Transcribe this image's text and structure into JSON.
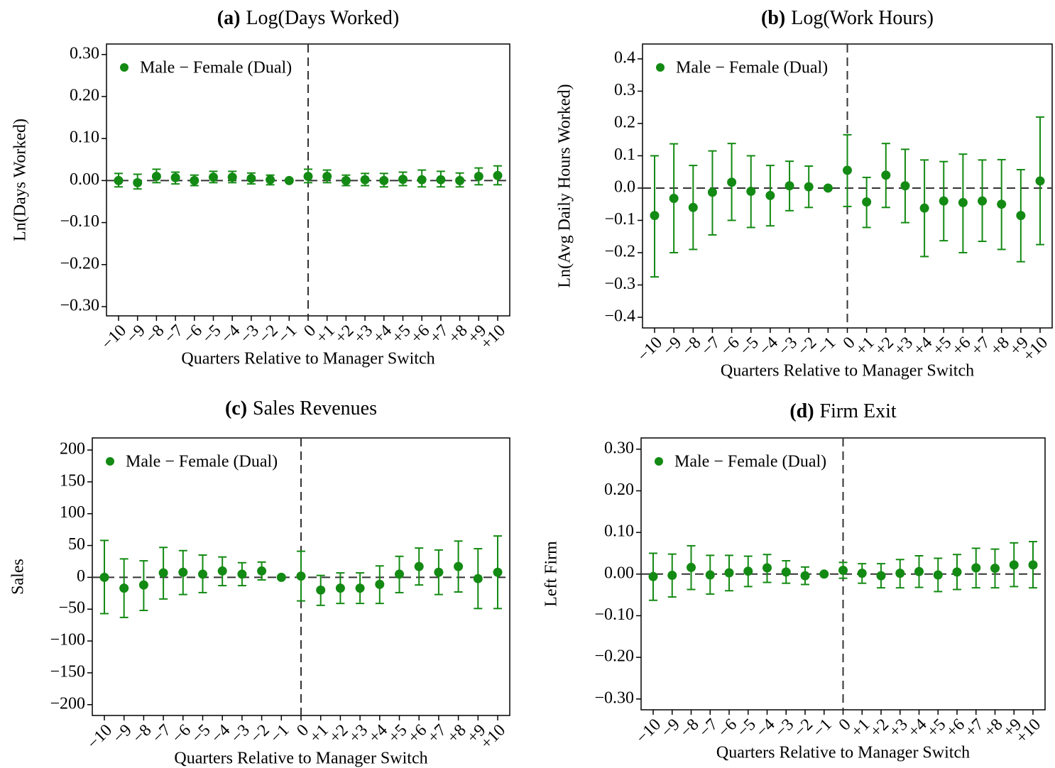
{
  "chart_data": [
    {
      "type": "scatter",
      "label": "(a)",
      "title": "Log(Days Worked)",
      "x_label": "Quarters Relative to Manager Switch",
      "y_label": "Ln(Days Worked)",
      "legend": "upper left",
      "hline": 0,
      "vline": "0",
      "categories": [
        "−10",
        "−9",
        "−8",
        "−7",
        "−6",
        "−5",
        "−4",
        "−3",
        "−2",
        "−1",
        "0",
        "+1",
        "+2",
        "+3",
        "+4",
        "+5",
        "+6",
        "+7",
        "+8",
        "+9",
        "+10"
      ],
      "ylim": [
        -0.322,
        0.325
      ],
      "yticks": [
        {
          "value": 0.3,
          "label": "0.30"
        },
        {
          "value": 0.2,
          "label": "0.20"
        },
        {
          "value": 0.1,
          "label": "0.10"
        },
        {
          "value": 0,
          "label": "0.00"
        },
        {
          "value": -0.1,
          "label": "−0.10"
        },
        {
          "value": -0.2,
          "label": "−0.20"
        },
        {
          "value": -0.3,
          "label": "−0.30"
        }
      ],
      "series": [
        {
          "name": "Male − Female (Dual)",
          "color": "#138a13",
          "values": [
            0.0,
            -0.005,
            0.01,
            0.007,
            0.0,
            0.008,
            0.008,
            0.005,
            0.002,
            0,
            0.01,
            0.01,
            0.0,
            0.002,
            0.0,
            0.003,
            0.002,
            0.002,
            0.0,
            0.01,
            0.012
          ],
          "lower": [
            -0.015,
            -0.02,
            -0.005,
            -0.008,
            -0.012,
            -0.005,
            -0.005,
            -0.008,
            -0.01,
            null,
            -0.005,
            -0.005,
            -0.012,
            -0.012,
            -0.015,
            -0.012,
            -0.015,
            -0.015,
            -0.015,
            -0.01,
            -0.01
          ],
          "upper": [
            0.017,
            0.015,
            0.027,
            0.02,
            0.013,
            0.022,
            0.022,
            0.018,
            0.013,
            null,
            0.027,
            0.025,
            0.013,
            0.017,
            0.017,
            0.02,
            0.025,
            0.022,
            0.018,
            0.03,
            0.035
          ]
        }
      ]
    },
    {
      "type": "scatter",
      "label": "(b)",
      "title": "Log(Work Hours)",
      "x_label": "Quarters Relative to Manager Switch",
      "y_label": "Ln(Avg Daily Hours Worked)",
      "legend": "upper left",
      "hline": 0,
      "vline": "0",
      "categories": [
        "−10",
        "−9",
        "−8",
        "−7",
        "−6",
        "−5",
        "−4",
        "−3",
        "−2",
        "−1",
        "0",
        "+1",
        "+2",
        "+3",
        "+4",
        "+5",
        "+6",
        "+7",
        "+8",
        "+9",
        "+10"
      ],
      "ylim": [
        -0.433,
        0.446
      ],
      "yticks": [
        {
          "value": 0.4,
          "label": "0.4"
        },
        {
          "value": 0.3,
          "label": "0.3"
        },
        {
          "value": 0.2,
          "label": "0.2"
        },
        {
          "value": 0.1,
          "label": "0.1"
        },
        {
          "value": 0,
          "label": "0.0"
        },
        {
          "value": -0.1,
          "label": "−0.1"
        },
        {
          "value": -0.2,
          "label": "−0.2"
        },
        {
          "value": -0.3,
          "label": "−0.3"
        },
        {
          "value": -0.4,
          "label": "−0.4"
        }
      ],
      "series": [
        {
          "name": "Male − Female (Dual)",
          "color": "#138a13",
          "values": [
            -0.085,
            -0.032,
            -0.06,
            -0.013,
            0.018,
            -0.01,
            -0.023,
            0.007,
            0.004,
            0,
            0.055,
            -0.043,
            0.04,
            0.007,
            -0.062,
            -0.04,
            -0.045,
            -0.04,
            -0.05,
            -0.085,
            0.022
          ],
          "lower": [
            -0.275,
            -0.2,
            -0.19,
            -0.145,
            -0.1,
            -0.122,
            -0.117,
            -0.07,
            -0.06,
            null,
            -0.057,
            -0.122,
            -0.06,
            -0.107,
            -0.212,
            -0.163,
            -0.2,
            -0.165,
            -0.19,
            -0.228,
            -0.175
          ],
          "upper": [
            0.1,
            0.137,
            0.07,
            0.115,
            0.138,
            0.1,
            0.07,
            0.083,
            0.068,
            null,
            0.165,
            0.033,
            0.138,
            0.12,
            0.087,
            0.082,
            0.105,
            0.087,
            0.088,
            0.057,
            0.22
          ]
        }
      ]
    },
    {
      "type": "scatter",
      "label": "(c)",
      "title": "Sales Revenues",
      "x_label": "Quarters Relative to Manager Switch",
      "y_label": "Sales",
      "legend": "upper left",
      "hline": 0,
      "vline": "0",
      "categories": [
        "−10",
        "−9",
        "−8",
        "−7",
        "−6",
        "−5",
        "−4",
        "−3",
        "−2",
        "−1",
        "0",
        "+1",
        "+2",
        "+3",
        "+4",
        "+5",
        "+6",
        "+7",
        "+8",
        "+9",
        "+10"
      ],
      "ylim": [
        -217,
        219
      ],
      "yticks": [
        200,
        150,
        100,
        50,
        0,
        {
          "value": -50,
          "label": "−50"
        },
        {
          "value": -100,
          "label": "−100"
        },
        {
          "value": -150,
          "label": "−150"
        },
        {
          "value": -200,
          "label": "−200"
        }
      ],
      "series": [
        {
          "name": "Male − Female (Dual)",
          "color": "#138a13",
          "values": [
            0,
            -17,
            -12,
            7,
            8,
            5,
            10,
            5,
            10,
            0,
            2,
            -20,
            -17,
            -17,
            -11,
            5,
            17,
            8,
            17,
            -2,
            8
          ],
          "lower": [
            -57,
            -63,
            -52,
            -34,
            -27,
            -24,
            -13,
            -13,
            -4,
            null,
            -37,
            -44,
            -41,
            -41,
            -41,
            -24,
            -12,
            -27,
            -23,
            -49,
            -49
          ],
          "upper": [
            58,
            29,
            26,
            47,
            42,
            35,
            32,
            23,
            24,
            null,
            41,
            3,
            7,
            7,
            18,
            33,
            46,
            43,
            57,
            45,
            65
          ]
        }
      ]
    },
    {
      "type": "scatter",
      "label": "(d)",
      "title": "Firm Exit",
      "x_label": "Quarters Relative to Manager Switch",
      "y_label": "Left Firm",
      "legend": "upper left",
      "hline": 0,
      "vline": "0",
      "categories": [
        "−10",
        "−9",
        "−8",
        "−7",
        "−6",
        "−5",
        "−4",
        "−3",
        "−2",
        "−1",
        "0",
        "+1",
        "+2",
        "+3",
        "+4",
        "+5",
        "+6",
        "+7",
        "+8",
        "+9",
        "+10"
      ],
      "ylim": [
        -0.326,
        0.327
      ],
      "yticks": [
        {
          "value": 0.3,
          "label": "0.30"
        },
        {
          "value": 0.2,
          "label": "0.20"
        },
        {
          "value": 0.1,
          "label": "0.10"
        },
        {
          "value": 0,
          "label": "0.00"
        },
        {
          "value": -0.1,
          "label": "−0.10"
        },
        {
          "value": -0.2,
          "label": "−0.20"
        },
        {
          "value": -0.3,
          "label": "−0.30"
        }
      ],
      "series": [
        {
          "name": "Male − Female (Dual)",
          "color": "#138a13",
          "values": [
            -0.006,
            -0.003,
            0.016,
            -0.002,
            0.003,
            0.007,
            0.015,
            0.005,
            -0.004,
            0,
            0.009,
            0.002,
            -0.004,
            0.002,
            0.006,
            -0.002,
            0.005,
            0.015,
            0.014,
            0.022,
            0.022
          ],
          "lower": [
            -0.063,
            -0.055,
            -0.037,
            -0.048,
            -0.04,
            -0.03,
            -0.02,
            -0.022,
            -0.025,
            null,
            -0.01,
            -0.022,
            -0.033,
            -0.033,
            -0.032,
            -0.042,
            -0.037,
            -0.033,
            -0.033,
            -0.03,
            -0.033
          ],
          "upper": [
            0.05,
            0.048,
            0.068,
            0.045,
            0.045,
            0.043,
            0.047,
            0.032,
            0.017,
            null,
            0.028,
            0.025,
            0.025,
            0.035,
            0.044,
            0.038,
            0.047,
            0.062,
            0.06,
            0.075,
            0.078
          ]
        }
      ]
    }
  ]
}
